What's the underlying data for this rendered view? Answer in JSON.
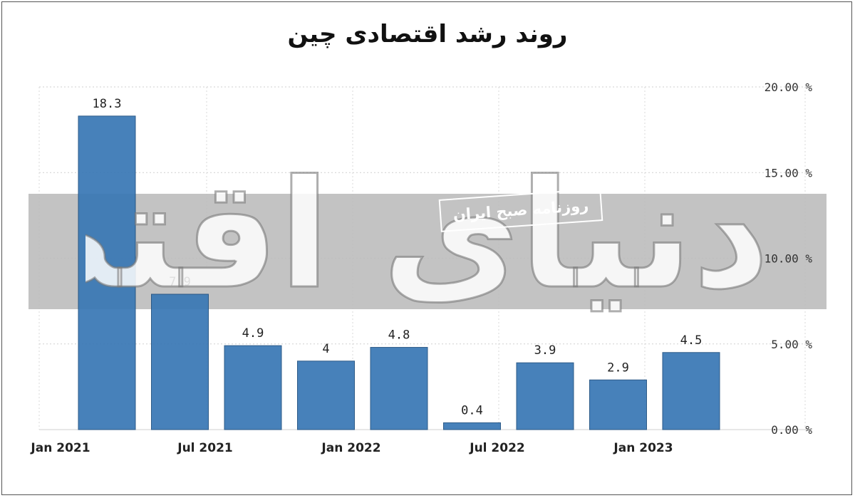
{
  "chart_data": {
    "type": "bar",
    "title": "روند رشد اقتصادی چین",
    "x_tick_labels": [
      "Jan 2021",
      "Jul 2021",
      "Jan 2022",
      "Jul 2022",
      "Jan 2023"
    ],
    "values": [
      18.3,
      7.9,
      4.9,
      4,
      4.8,
      0.4,
      3.9,
      2.9,
      4.5
    ],
    "value_labels": [
      "18.3",
      "7.9",
      "4.9",
      "4",
      "4.8",
      "0.4",
      "3.9",
      "2.9",
      "4.5"
    ],
    "y_ticks": [
      0,
      5,
      10,
      15,
      20
    ],
    "y_tick_labels": [
      "0.00 %",
      "5.00 %",
      "10.00 %",
      "15.00 %",
      "20.00 %"
    ],
    "ylim": [
      0,
      20
    ],
    "grid": true,
    "y_axis_side": "right",
    "bar_color": "#3a78b5"
  },
  "watermark": {
    "brand": "دنیای اقتصاد",
    "tagline": "روزنامه صبح ایران",
    "band_color": "#bdbdbd"
  }
}
